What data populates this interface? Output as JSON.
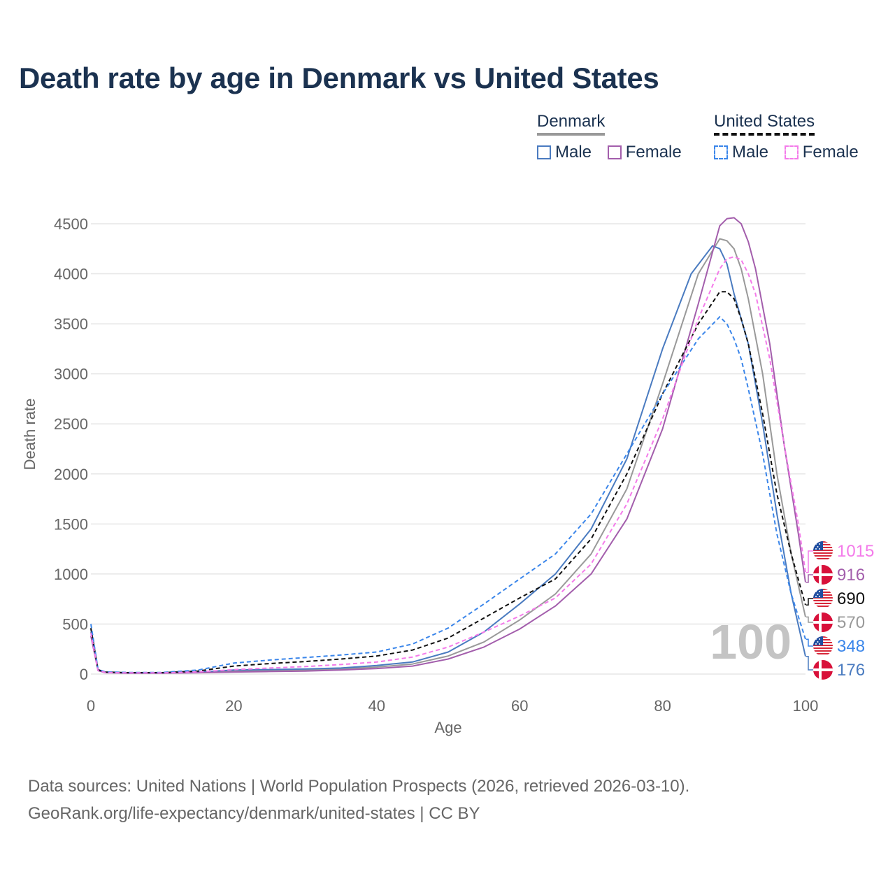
{
  "title": "Death rate by age in Denmark vs United States",
  "legend": {
    "groups": [
      {
        "name": "Denmark",
        "items": [
          {
            "label": "Male",
            "color": "#4a7bc0",
            "dashed": false
          },
          {
            "label": "Female",
            "color": "#a35eac",
            "dashed": false
          }
        ]
      },
      {
        "name": "United States",
        "items": [
          {
            "label": "Male",
            "color": "#3b86ea",
            "dashed": true
          },
          {
            "label": "Female",
            "color": "#f47bea",
            "dashed": true
          }
        ]
      }
    ]
  },
  "footer": {
    "line1": "Data sources: United Nations | World Population Prospects (2026, retrieved 2026-03-10).",
    "line2": "GeoRank.org/life-expectancy/denmark/united-states | CC BY"
  },
  "chart_data": {
    "type": "line",
    "xlabel": "Age",
    "ylabel": "Death rate",
    "xlim": [
      0,
      100
    ],
    "ylim": [
      0,
      4500
    ],
    "xticks": [
      0,
      20,
      40,
      60,
      80,
      100
    ],
    "yticks": [
      0,
      500,
      1000,
      1500,
      2000,
      2500,
      3000,
      3500,
      4000,
      4500
    ],
    "grid": true,
    "age_watermark": "100",
    "series": [
      {
        "name": "Denmark Total",
        "color": "#999999",
        "dashed": false,
        "points": [
          [
            0,
            420
          ],
          [
            1,
            40
          ],
          [
            2,
            16
          ],
          [
            5,
            10
          ],
          [
            10,
            10
          ],
          [
            15,
            16
          ],
          [
            20,
            30
          ],
          [
            25,
            35
          ],
          [
            30,
            40
          ],
          [
            35,
            50
          ],
          [
            40,
            70
          ],
          [
            45,
            100
          ],
          [
            50,
            180
          ],
          [
            55,
            320
          ],
          [
            60,
            540
          ],
          [
            65,
            800
          ],
          [
            70,
            1200
          ],
          [
            75,
            1850
          ],
          [
            80,
            2900
          ],
          [
            85,
            4000
          ],
          [
            88,
            4350
          ],
          [
            89,
            4330
          ],
          [
            90,
            4250
          ],
          [
            91,
            4050
          ],
          [
            92,
            3750
          ],
          [
            94,
            3000
          ],
          [
            96,
            2000
          ],
          [
            98,
            1200
          ],
          [
            100,
            570
          ]
        ]
      },
      {
        "name": "Denmark Male",
        "color": "#4a7bc0",
        "dashed": false,
        "points": [
          [
            0,
            450
          ],
          [
            1,
            45
          ],
          [
            2,
            18
          ],
          [
            5,
            12
          ],
          [
            10,
            12
          ],
          [
            15,
            20
          ],
          [
            20,
            40
          ],
          [
            25,
            45
          ],
          [
            30,
            50
          ],
          [
            35,
            60
          ],
          [
            40,
            85
          ],
          [
            45,
            120
          ],
          [
            50,
            220
          ],
          [
            55,
            420
          ],
          [
            60,
            700
          ],
          [
            65,
            1000
          ],
          [
            70,
            1450
          ],
          [
            75,
            2150
          ],
          [
            80,
            3250
          ],
          [
            84,
            4000
          ],
          [
            87,
            4280
          ],
          [
            88,
            4250
          ],
          [
            89,
            4100
          ],
          [
            90,
            3800
          ],
          [
            92,
            3300
          ],
          [
            94,
            2500
          ],
          [
            96,
            1600
          ],
          [
            98,
            800
          ],
          [
            100,
            176
          ]
        ]
      },
      {
        "name": "Denmark Female",
        "color": "#a35eac",
        "dashed": false,
        "points": [
          [
            0,
            380
          ],
          [
            1,
            35
          ],
          [
            2,
            14
          ],
          [
            5,
            9
          ],
          [
            10,
            9
          ],
          [
            15,
            13
          ],
          [
            20,
            20
          ],
          [
            25,
            25
          ],
          [
            30,
            30
          ],
          [
            35,
            40
          ],
          [
            40,
            55
          ],
          [
            45,
            80
          ],
          [
            50,
            150
          ],
          [
            55,
            270
          ],
          [
            60,
            450
          ],
          [
            65,
            680
          ],
          [
            70,
            1000
          ],
          [
            75,
            1550
          ],
          [
            80,
            2450
          ],
          [
            85,
            3700
          ],
          [
            88,
            4480
          ],
          [
            89,
            4550
          ],
          [
            90,
            4560
          ],
          [
            91,
            4500
          ],
          [
            92,
            4320
          ],
          [
            93,
            4050
          ],
          [
            95,
            3300
          ],
          [
            97,
            2300
          ],
          [
            99,
            1400
          ],
          [
            100,
            916
          ]
        ]
      },
      {
        "name": "United States Total",
        "color": "#111111",
        "dashed": true,
        "points": [
          [
            0,
            460
          ],
          [
            1,
            42
          ],
          [
            2,
            20
          ],
          [
            5,
            14
          ],
          [
            10,
            14
          ],
          [
            15,
            30
          ],
          [
            20,
            80
          ],
          [
            25,
            105
          ],
          [
            30,
            125
          ],
          [
            35,
            150
          ],
          [
            40,
            180
          ],
          [
            45,
            240
          ],
          [
            50,
            360
          ],
          [
            55,
            560
          ],
          [
            60,
            760
          ],
          [
            65,
            950
          ],
          [
            70,
            1350
          ],
          [
            75,
            2000
          ],
          [
            80,
            2800
          ],
          [
            85,
            3500
          ],
          [
            88,
            3820
          ],
          [
            89,
            3820
          ],
          [
            90,
            3750
          ],
          [
            91,
            3550
          ],
          [
            92,
            3300
          ],
          [
            94,
            2600
          ],
          [
            96,
            1800
          ],
          [
            98,
            1200
          ],
          [
            100,
            690
          ]
        ]
      },
      {
        "name": "United States Male",
        "color": "#3b86ea",
        "dashed": true,
        "points": [
          [
            0,
            500
          ],
          [
            1,
            48
          ],
          [
            2,
            22
          ],
          [
            5,
            16
          ],
          [
            10,
            16
          ],
          [
            15,
            40
          ],
          [
            20,
            110
          ],
          [
            25,
            140
          ],
          [
            30,
            165
          ],
          [
            35,
            190
          ],
          [
            40,
            220
          ],
          [
            45,
            300
          ],
          [
            50,
            460
          ],
          [
            55,
            700
          ],
          [
            60,
            950
          ],
          [
            65,
            1200
          ],
          [
            70,
            1600
          ],
          [
            75,
            2200
          ],
          [
            80,
            2800
          ],
          [
            85,
            3350
          ],
          [
            88,
            3570
          ],
          [
            89,
            3500
          ],
          [
            90,
            3350
          ],
          [
            91,
            3150
          ],
          [
            92,
            2850
          ],
          [
            94,
            2200
          ],
          [
            96,
            1400
          ],
          [
            98,
            800
          ],
          [
            100,
            348
          ]
        ]
      },
      {
        "name": "United States Female",
        "color": "#f47bea",
        "dashed": true,
        "points": [
          [
            0,
            410
          ],
          [
            1,
            36
          ],
          [
            2,
            17
          ],
          [
            5,
            12
          ],
          [
            10,
            12
          ],
          [
            15,
            22
          ],
          [
            20,
            45
          ],
          [
            25,
            60
          ],
          [
            30,
            75
          ],
          [
            35,
            95
          ],
          [
            40,
            120
          ],
          [
            45,
            170
          ],
          [
            50,
            270
          ],
          [
            55,
            420
          ],
          [
            60,
            580
          ],
          [
            65,
            760
          ],
          [
            70,
            1100
          ],
          [
            75,
            1700
          ],
          [
            80,
            2550
          ],
          [
            85,
            3550
          ],
          [
            88,
            4050
          ],
          [
            89,
            4150
          ],
          [
            90,
            4170
          ],
          [
            91,
            4140
          ],
          [
            92,
            4000
          ],
          [
            93,
            3800
          ],
          [
            95,
            3150
          ],
          [
            97,
            2300
          ],
          [
            99,
            1500
          ],
          [
            100,
            1015
          ]
        ]
      }
    ],
    "end_labels": [
      {
        "value": "1015",
        "series": "United States Female",
        "color": "#f47bea",
        "flag": "us"
      },
      {
        "value": "916",
        "series": "Denmark Female",
        "color": "#a35eac",
        "flag": "dk"
      },
      {
        "value": "690",
        "series": "United States Total",
        "color": "#111111",
        "flag": "us"
      },
      {
        "value": "570",
        "series": "Denmark Total",
        "color": "#999999",
        "flag": "dk"
      },
      {
        "value": "348",
        "series": "United States Male",
        "color": "#3b86ea",
        "flag": "us"
      },
      {
        "value": "176",
        "series": "Denmark Male",
        "color": "#4a7bc0",
        "flag": "dk"
      }
    ]
  }
}
